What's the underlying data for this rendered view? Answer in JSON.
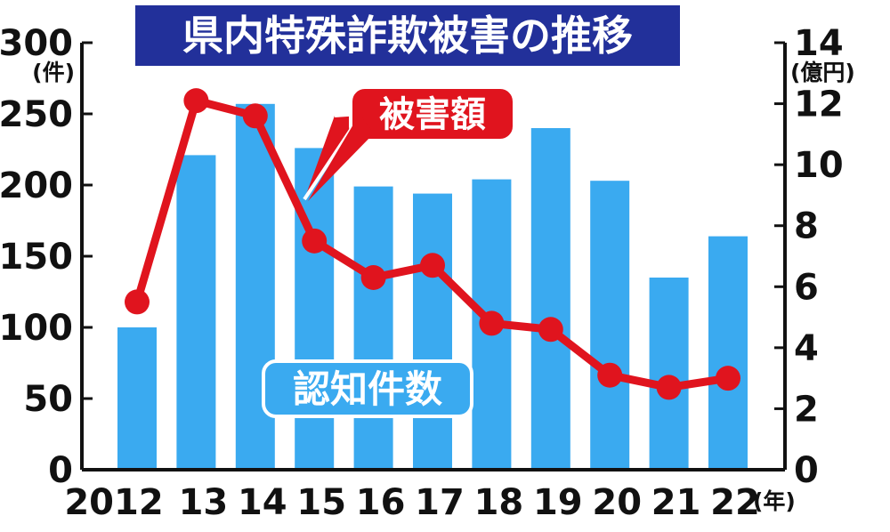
{
  "chart_data": {
    "type": "bar",
    "title": "県内特殊詐欺被害の推移",
    "categories": [
      "2012",
      "13",
      "14",
      "15",
      "16",
      "17",
      "18",
      "19",
      "20",
      "21",
      "22"
    ],
    "x_unit": "(年)",
    "series": [
      {
        "name": "認知件数",
        "type": "bar",
        "axis": "left",
        "values": [
          100,
          221,
          257,
          226,
          199,
          194,
          204,
          240,
          203,
          135,
          164
        ]
      },
      {
        "name": "被害額",
        "type": "line",
        "axis": "right",
        "values": [
          5.5,
          12.1,
          11.6,
          7.5,
          6.3,
          6.7,
          4.8,
          4.6,
          3.1,
          2.7,
          3.0
        ]
      }
    ],
    "y_left": {
      "unit": "(件)",
      "range": [
        0,
        300
      ],
      "ticks": [
        "0",
        "50",
        "100",
        "150",
        "200",
        "250",
        "300"
      ]
    },
    "y_right": {
      "unit": "(億円)",
      "range": [
        0,
        14
      ],
      "ticks": [
        "0",
        "2",
        "4",
        "6",
        "8",
        "10",
        "12",
        "14"
      ]
    },
    "colors": {
      "bar": "#3aaaf0",
      "line": "#e0141e",
      "title_bg": "#22309a",
      "title_text": "#ffffff"
    },
    "grid": false
  }
}
